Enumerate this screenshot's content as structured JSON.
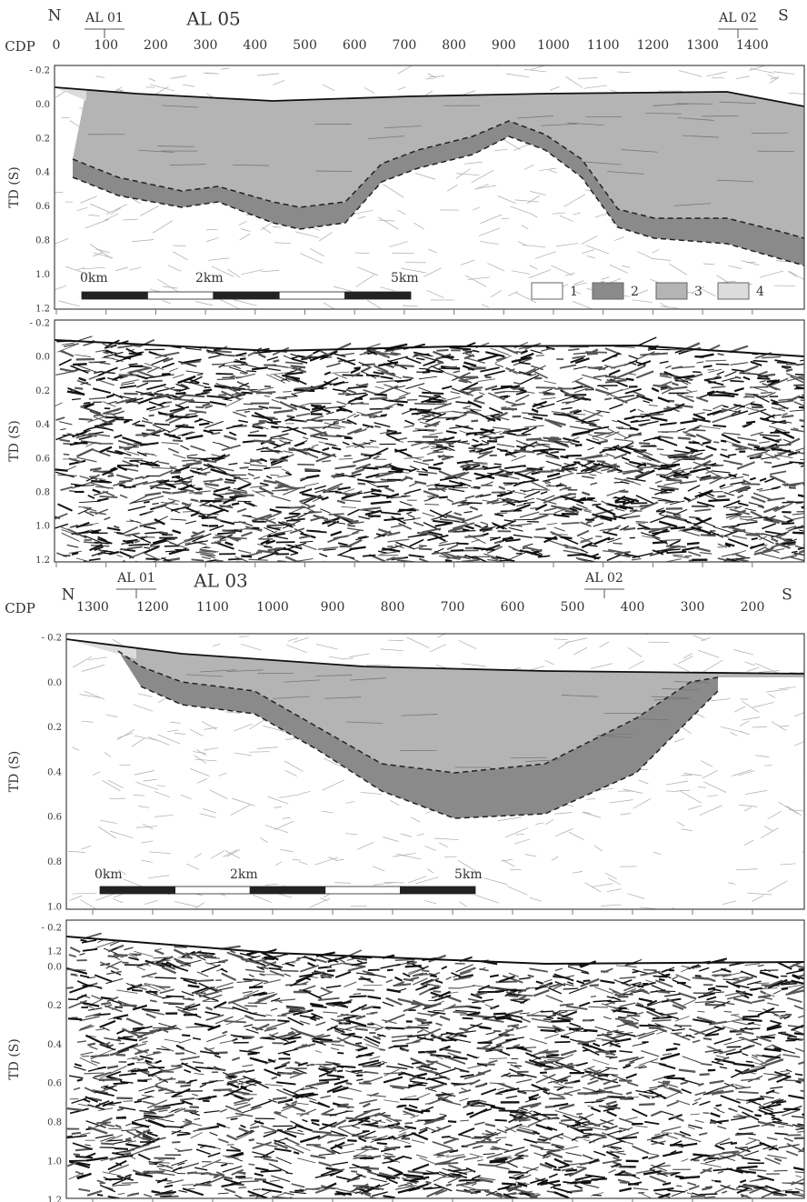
{
  "sections": [
    {
      "north": "N",
      "south": "S",
      "wells": [
        "AL 01",
        "AL 02"
      ],
      "line": "AL 05",
      "cdp_label": "CDP",
      "cdp_ticks": [
        "0",
        "100",
        "200",
        "300",
        "400",
        "500",
        "600",
        "700",
        "800",
        "900",
        "1000",
        "1100",
        "1200",
        "1300",
        "1400"
      ],
      "interpreted": {
        "axis_label": "TD (S)",
        "td_ticks": [
          "- 0.2",
          "0.0",
          "0.2",
          "0.4",
          "0.6",
          "0.8",
          "1.0",
          "1.2"
        ],
        "scale_bar": [
          "0km",
          "2km",
          "5km"
        ],
        "legend": [
          "1",
          "2",
          "3",
          "4"
        ]
      },
      "seismic": {
        "axis_label": "TD (S)",
        "td_ticks": [
          "- 0.2",
          "0.0",
          "0.2",
          "0.4",
          "0.6",
          "0.8",
          "1.0",
          "1.2"
        ]
      }
    },
    {
      "north": "N",
      "south": "S",
      "wells": [
        "AL 01",
        "AL 02"
      ],
      "line": "AL 03",
      "cdp_label": "CDP",
      "cdp_ticks": [
        "1300",
        "1200",
        "1100",
        "1000",
        "900",
        "800",
        "700",
        "600",
        "500",
        "400",
        "300",
        "200"
      ],
      "interpreted": {
        "axis_label": "TD (S)",
        "td_ticks": [
          "- 0.2",
          "0.0",
          "0.2",
          "0.4",
          "0.6",
          "0.8",
          "1.0",
          "1.2"
        ],
        "scale_bar": [
          "0km",
          "2km",
          "5km"
        ]
      },
      "seismic": {
        "axis_label": "TD (S)",
        "td_ticks": [
          "- 0.2",
          "0.0",
          "0.2",
          "0.4",
          "0.6",
          "0.8",
          "1.0",
          "1.2"
        ]
      }
    }
  ]
}
